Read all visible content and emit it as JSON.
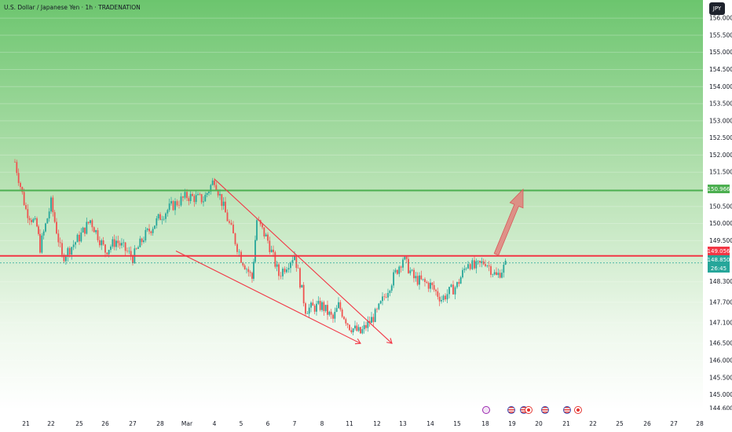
{
  "title": "U.S. Dollar / Japanese Yen · 1h · TRADENATION",
  "currency_button": "JPY",
  "colors": {
    "resistance": "#f23645",
    "target": "#4caf50",
    "current": "#26a69a",
    "bull": "#26a69a",
    "bear": "#ef5350",
    "arrow": "#e57373"
  },
  "chart_data": {
    "type": "candlestick",
    "symbol": "USDJPY",
    "timeframe": "1h",
    "ylim": [
      144.6,
      156.3
    ],
    "y_ticks": [
      "156.000",
      "155.500",
      "155.000",
      "154.500",
      "154.000",
      "153.500",
      "153.000",
      "152.500",
      "152.000",
      "151.500",
      "150.500",
      "150.000",
      "149.500",
      "148.300",
      "147.700",
      "147.100",
      "146.500",
      "146.000",
      "145.500",
      "145.000",
      "144.600"
    ],
    "x_ticks": [
      "21",
      "22",
      "25",
      "26",
      "27",
      "28",
      "Mar",
      "4",
      "5",
      "6",
      "7",
      "8",
      "11",
      "12",
      "13",
      "14",
      "15",
      "18",
      "19",
      "20",
      "21",
      "22",
      "25",
      "26",
      "27",
      "28"
    ],
    "levels": {
      "target": 150.966,
      "resistance": 149.056,
      "current": 148.85
    },
    "price_labels": {
      "target": "150.966",
      "resistance": "149.056",
      "current": "148.850",
      "countdown": "26:45"
    },
    "price_path": [
      [
        "21-",
        151.8
      ],
      [
        "21",
        150.4
      ],
      [
        "21+",
        149.9
      ],
      [
        "22-",
        149.3
      ],
      [
        "22",
        150.6
      ],
      [
        "22+",
        149.0
      ],
      [
        "25",
        149.6
      ],
      [
        "25+",
        150.1
      ],
      [
        "26",
        149.2
      ],
      [
        "26+",
        149.5
      ],
      [
        "27",
        149.0
      ],
      [
        "27+",
        149.6
      ],
      [
        "28",
        150.2
      ],
      [
        "28+",
        150.5
      ],
      [
        "Mar",
        150.8
      ],
      [
        "4-",
        150.7
      ],
      [
        "4",
        151.3
      ],
      [
        "4+",
        150.3
      ],
      [
        "5",
        149.0
      ],
      [
        "5+",
        148.4
      ],
      [
        "6-",
        150.1
      ],
      [
        "6",
        149.5
      ],
      [
        "6+",
        148.5
      ],
      [
        "7",
        149.1
      ],
      [
        "7+",
        147.5
      ],
      [
        "8",
        147.6
      ],
      [
        "8+",
        147.2
      ],
      [
        "11-",
        147.6
      ],
      [
        "11",
        147.0
      ],
      [
        "11+",
        146.8
      ],
      [
        "12",
        147.4
      ],
      [
        "12+",
        148.1
      ],
      [
        "13",
        149.0
      ],
      [
        "13+",
        148.4
      ],
      [
        "14",
        148.2
      ],
      [
        "14+",
        147.8
      ],
      [
        "15",
        148.2
      ],
      [
        "15+",
        148.9
      ],
      [
        "18-",
        148.7
      ],
      [
        "18",
        148.9
      ],
      [
        "18+",
        148.45
      ],
      [
        "18++",
        148.85
      ]
    ],
    "annotations": [
      {
        "type": "falling-wedge",
        "upper": [
          [
            "4",
            151.3
          ],
          [
            "13-",
            146.5
          ]
        ],
        "lower": [
          [
            "Mar-",
            149.2
          ],
          [
            "11+",
            146.5
          ]
        ]
      },
      {
        "type": "arrow-up",
        "from": [
          "18+",
          149.1
        ],
        "to": [
          "19+",
          151.0
        ]
      }
    ]
  },
  "events": [
    "lightning",
    "us-flag",
    "us-flag-jp",
    "us-flag",
    "us-flag-jp",
    "us-flag"
  ]
}
